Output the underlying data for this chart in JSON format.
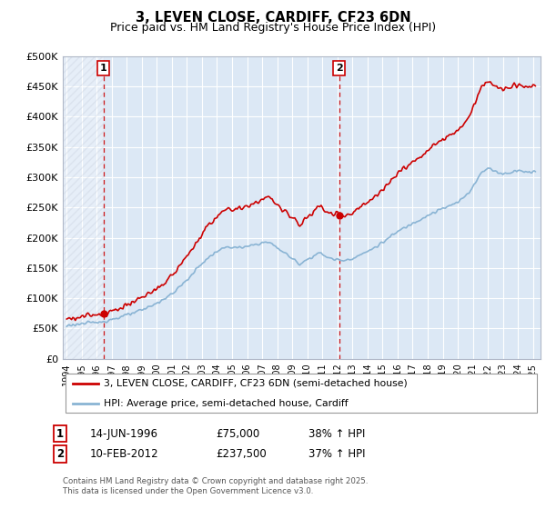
{
  "title": "3, LEVEN CLOSE, CARDIFF, CF23 6DN",
  "subtitle": "Price paid vs. HM Land Registry's House Price Index (HPI)",
  "ylim": [
    0,
    500000
  ],
  "xlim_start": 1993.75,
  "xlim_end": 2025.5,
  "ytick_labels": [
    "£0",
    "£50K",
    "£100K",
    "£150K",
    "£200K",
    "£250K",
    "£300K",
    "£350K",
    "£400K",
    "£450K",
    "£500K"
  ],
  "ytick_values": [
    0,
    50000,
    100000,
    150000,
    200000,
    250000,
    300000,
    350000,
    400000,
    450000,
    500000
  ],
  "xtick_years": [
    1994,
    1995,
    1996,
    1997,
    1998,
    1999,
    2000,
    2001,
    2002,
    2003,
    2004,
    2005,
    2006,
    2007,
    2008,
    2009,
    2010,
    2011,
    2012,
    2013,
    2014,
    2015,
    2016,
    2017,
    2018,
    2019,
    2020,
    2021,
    2022,
    2023,
    2024,
    2025
  ],
  "sale1_x": 1996.45,
  "sale1_y": 75000,
  "sale1_label": "1",
  "sale2_x": 2012.11,
  "sale2_y": 237500,
  "sale2_label": "2",
  "hpi_color": "#8ab4d4",
  "price_color": "#cc0000",
  "background_color": "#dce8f5",
  "grid_color": "#ffffff",
  "hatch_color": "#c0c8d8",
  "legend_label_price": "3, LEVEN CLOSE, CARDIFF, CF23 6DN (semi-detached house)",
  "legend_label_hpi": "HPI: Average price, semi-detached house, Cardiff",
  "footer": "Contains HM Land Registry data © Crown copyright and database right 2025.\nThis data is licensed under the Open Government Licence v3.0."
}
